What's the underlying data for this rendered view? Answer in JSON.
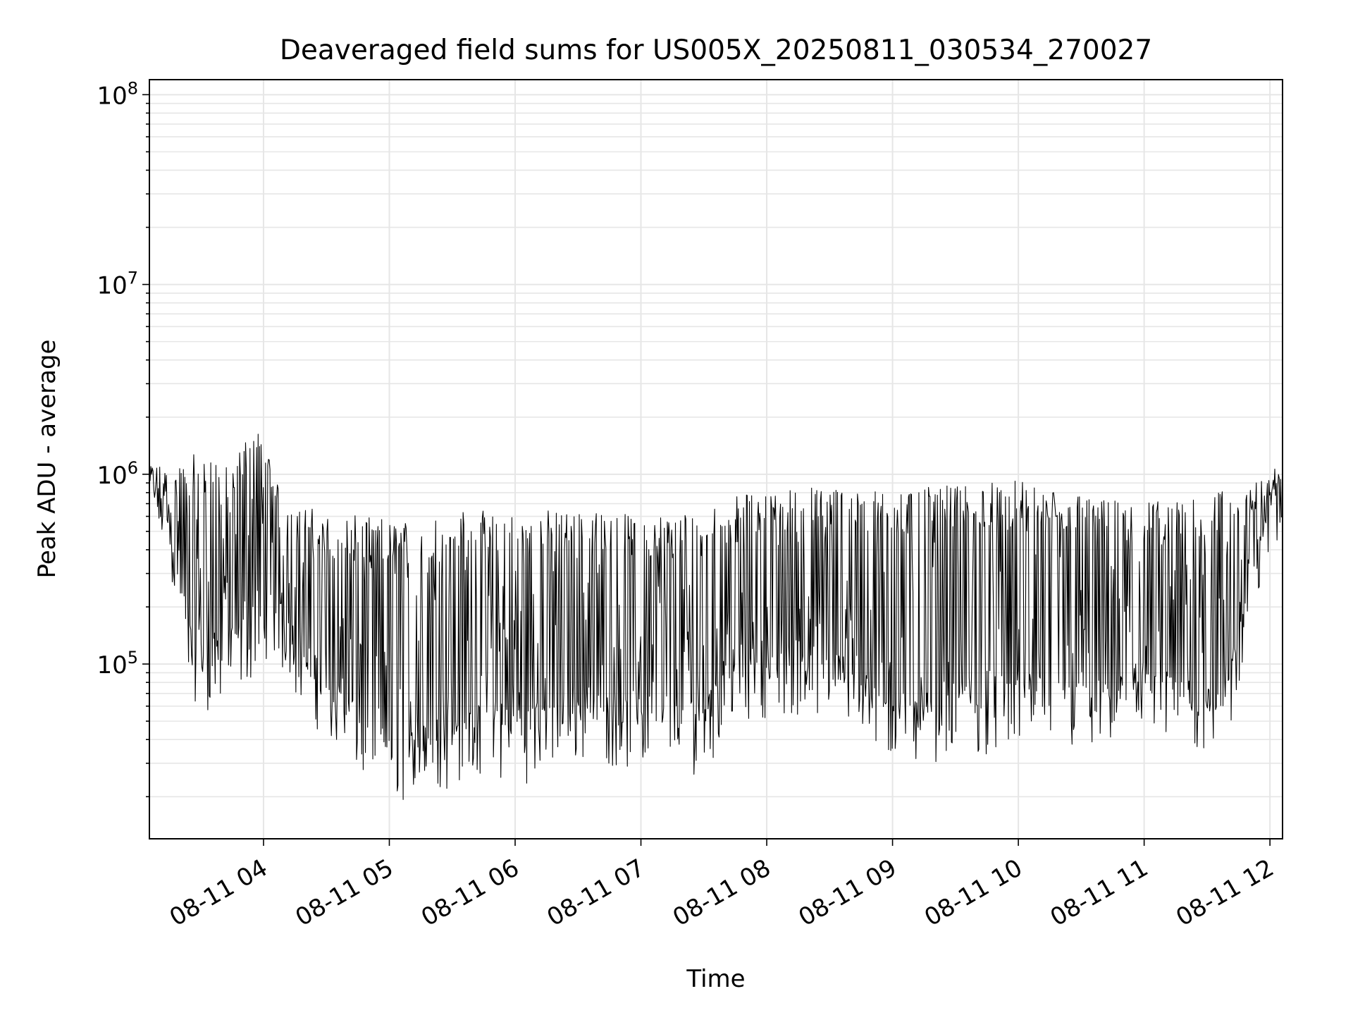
{
  "chart_data": {
    "type": "line",
    "title": "Deaveraged field sums for US005X_20250811_030534_270027",
    "xlabel": "Time",
    "ylabel": "Peak ADU - average",
    "yscale": "log",
    "ylim": [
      12000,
      120000000
    ],
    "xlim": [
      "2025-08-11 03:05:34",
      "2025-08-11 12:06:00"
    ],
    "grid": true,
    "line_color": "#000000",
    "grid_color": "#e6e6e6",
    "x_ticks": [
      {
        "t": "2025-08-11 04:00",
        "label": "08-11 04"
      },
      {
        "t": "2025-08-11 05:00",
        "label": "08-11 05"
      },
      {
        "t": "2025-08-11 06:00",
        "label": "08-11 06"
      },
      {
        "t": "2025-08-11 07:00",
        "label": "08-11 07"
      },
      {
        "t": "2025-08-11 08:00",
        "label": "08-11 08"
      },
      {
        "t": "2025-08-11 09:00",
        "label": "08-11 09"
      },
      {
        "t": "2025-08-11 10:00",
        "label": "08-11 10"
      },
      {
        "t": "2025-08-11 11:00",
        "label": "08-11 11"
      },
      {
        "t": "2025-08-11 12:00",
        "label": "08-11 12"
      }
    ],
    "y_ticks": [
      {
        "value": 100000,
        "base": "10",
        "exp": "5"
      },
      {
        "value": 1000000,
        "base": "10",
        "exp": "6"
      },
      {
        "value": 10000000,
        "base": "10",
        "exp": "7"
      },
      {
        "value": 100000000,
        "base": "10",
        "exp": "8"
      }
    ],
    "series": [
      {
        "x": [
          "2025-08-11 03:05",
          "2025-08-11 03:15",
          "2025-08-11 03:25",
          "2025-08-11 03:35",
          "2025-08-11 03:45",
          "2025-08-11 03:55",
          "2025-08-11 04:00",
          "2025-08-11 04:10",
          "2025-08-11 04:20",
          "2025-08-11 04:30",
          "2025-08-11 04:40",
          "2025-08-11 04:50",
          "2025-08-11 05:00",
          "2025-08-11 05:10",
          "2025-08-11 05:20",
          "2025-08-11 05:30",
          "2025-08-11 05:40",
          "2025-08-11 05:50",
          "2025-08-11 06:00",
          "2025-08-11 06:10",
          "2025-08-11 06:20",
          "2025-08-11 06:30",
          "2025-08-11 06:40",
          "2025-08-11 06:50",
          "2025-08-11 07:00",
          "2025-08-11 07:10",
          "2025-08-11 07:20",
          "2025-08-11 07:30",
          "2025-08-11 07:40",
          "2025-08-11 07:50",
          "2025-08-11 08:00",
          "2025-08-11 08:10",
          "2025-08-11 08:20",
          "2025-08-11 08:30",
          "2025-08-11 08:40",
          "2025-08-11 08:50",
          "2025-08-11 09:00",
          "2025-08-11 09:10",
          "2025-08-11 09:20",
          "2025-08-11 09:30",
          "2025-08-11 09:40",
          "2025-08-11 09:50",
          "2025-08-11 10:00",
          "2025-08-11 10:10",
          "2025-08-11 10:20",
          "2025-08-11 10:30",
          "2025-08-11 10:40",
          "2025-08-11 10:50",
          "2025-08-11 11:00",
          "2025-08-11 11:10",
          "2025-08-11 11:20",
          "2025-08-11 11:30",
          "2025-08-11 11:40",
          "2025-08-11 11:50",
          "2025-08-11 12:00",
          "2025-08-11 12:05"
        ],
        "baseline": [
          900000,
          500000,
          120000,
          100000,
          110000,
          150000,
          200000,
          150000,
          100000,
          70000,
          50000,
          40000,
          35000,
          33000,
          35000,
          40000,
          45000,
          45000,
          40000,
          45000,
          50000,
          55000,
          55000,
          50000,
          50000,
          50000,
          48000,
          45000,
          80000,
          90000,
          95000,
          95000,
          90000,
          85000,
          80000,
          60000,
          55000,
          50000,
          55000,
          60000,
          60000,
          60000,
          65000,
          60000,
          60000,
          60000,
          60000,
          65000,
          65000,
          60000,
          60000,
          60000,
          70000,
          200000,
          650000,
          700000
        ],
        "peak": [
          1100000,
          1100000,
          1200000,
          1250000,
          1000000,
          1900000,
          1500000,
          700000,
          650000,
          600000,
          580000,
          570000,
          570000,
          560000,
          560000,
          600000,
          620000,
          620000,
          600000,
          620000,
          630000,
          640000,
          600000,
          590000,
          590000,
          590000,
          600000,
          620000,
          700000,
          750000,
          780000,
          800000,
          820000,
          850000,
          800000,
          780000,
          800000,
          800000,
          820000,
          840000,
          850000,
          880000,
          880000,
          850000,
          800000,
          750000,
          700000,
          700000,
          700000,
          700000,
          750000,
          800000,
          800000,
          850000,
          950000,
          1300000
        ]
      }
    ]
  }
}
